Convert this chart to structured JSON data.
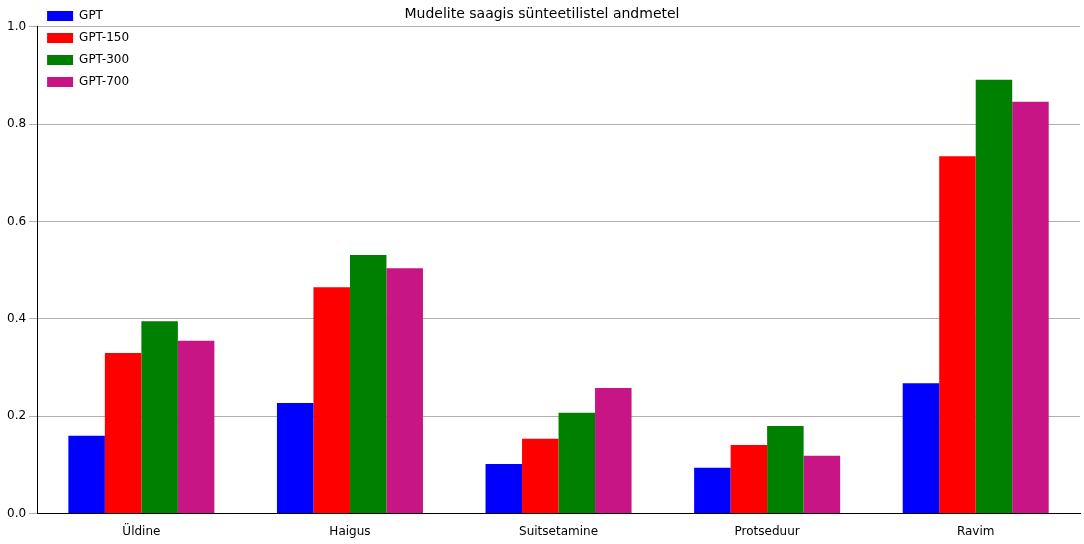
{
  "chart_data": {
    "type": "bar",
    "title": "Mudelite saagis sünteetilistel andmetel",
    "categories": [
      "Üldine",
      "Haigus",
      "Suitsetamine",
      "Protseduur",
      "Ravim"
    ],
    "series": [
      {
        "name": "GPT",
        "color": "#0000ff",
        "values": [
          0.16,
          0.227,
          0.102,
          0.094,
          0.268
        ]
      },
      {
        "name": "GPT-150",
        "color": "#ff0000",
        "values": [
          0.33,
          0.465,
          0.154,
          0.141,
          0.734
        ]
      },
      {
        "name": "GPT-300",
        "color": "#008000",
        "values": [
          0.395,
          0.531,
          0.207,
          0.18,
          0.891
        ]
      },
      {
        "name": "GPT-700",
        "color": "#c71585",
        "values": [
          0.355,
          0.504,
          0.258,
          0.119,
          0.846
        ]
      }
    ],
    "ylim": [
      0,
      1
    ],
    "yticks": [
      {
        "value": 0,
        "label": "0.0"
      },
      {
        "value": 0.2,
        "label": "0.2"
      },
      {
        "value": 0.4,
        "label": "0.4"
      },
      {
        "value": 0.6,
        "label": "0.6"
      },
      {
        "value": 0.8,
        "label": "0.8"
      },
      {
        "value": 1,
        "label": "1.0"
      }
    ],
    "grid": "y",
    "legend": "top left"
  }
}
